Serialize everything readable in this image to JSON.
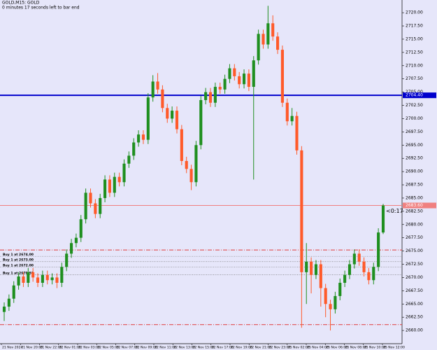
{
  "header": {
    "title": "GOLD,M15: GOLD",
    "countdown": "0 minutes 17 seconds left to bar end"
  },
  "chart_data": {
    "type": "candlestick",
    "open": [
      2663.5,
      2664.5,
      2666.0,
      2668.5,
      2670.2,
      2669.0,
      2671.0,
      2670.0,
      2669.0,
      2670.5,
      2669.5,
      2670.0,
      2669.0,
      2672.0,
      2674.5,
      2676.5,
      2677.5,
      2681.0,
      2686.0,
      2684.0,
      2682.0,
      2685.0,
      2688.5,
      2686.0,
      2689.0,
      2688.0,
      2691.5,
      2693.0,
      2695.5,
      2697.0,
      2696.0,
      2704.0,
      2707.0,
      2705.5,
      2702.0,
      2700.0,
      2701.5,
      2698.0,
      2692.0,
      2690.5,
      2688.0,
      2695.0,
      2703.5,
      2705.0,
      2703.0,
      2706.0,
      2705.5,
      2707.5,
      2709.5,
      2708.0,
      2706.5,
      2708.5,
      2706.0,
      2711.0,
      2716.0,
      2714.0,
      2718.0,
      2715.5,
      2713.0,
      2703.0,
      2699.5,
      2700.5,
      2694.0,
      2671.0,
      2673.0,
      2670.5,
      2672.5,
      2668.0,
      2665.0,
      2664.0,
      2666.5,
      2669.0,
      2670.5,
      2672.5,
      2674.5,
      2673.0,
      2671.0,
      2669.5,
      2672.0,
      2678.5
    ],
    "high": [
      2665.3,
      2666.8,
      2669.3,
      2671.0,
      2671.0,
      2671.8,
      2671.8,
      2670.8,
      2671.3,
      2671.3,
      2670.8,
      2670.8,
      2672.8,
      2675.3,
      2677.3,
      2678.3,
      2681.8,
      2686.8,
      2686.8,
      2684.8,
      2685.8,
      2689.3,
      2689.3,
      2689.8,
      2689.8,
      2692.3,
      2693.8,
      2696.3,
      2697.8,
      2697.8,
      2704.8,
      2708.2,
      2708.6,
      2706.3,
      2702.8,
      2702.3,
      2702.3,
      2698.8,
      2692.8,
      2691.3,
      2695.8,
      2704.3,
      2705.8,
      2705.8,
      2706.8,
      2706.8,
      2708.3,
      2710.3,
      2710.3,
      2708.8,
      2709.3,
      2709.3,
      2711.8,
      2716.8,
      2716.8,
      2721.3,
      2719.5,
      2716.3,
      2713.8,
      2703.8,
      2702.0,
      2701.3,
      2694.8,
      2676.5,
      2673.8,
      2673.3,
      2673.3,
      2668.8,
      2665.8,
      2667.3,
      2669.8,
      2671.3,
      2673.3,
      2675.3,
      2675.3,
      2673.8,
      2671.8,
      2672.8,
      2679.3,
      2683.9
    ],
    "low": [
      2661.8,
      2663.7,
      2665.2,
      2667.7,
      2668.2,
      2668.2,
      2669.2,
      2668.2,
      2668.2,
      2668.7,
      2668.7,
      2668.0,
      2668.2,
      2671.2,
      2673.7,
      2675.7,
      2676.7,
      2680.2,
      2683.2,
      2681.2,
      2681.2,
      2684.2,
      2685.2,
      2685.2,
      2687.2,
      2687.2,
      2690.7,
      2692.2,
      2694.7,
      2695.2,
      2695.2,
      2703.2,
      2704.7,
      2701.2,
      2699.2,
      2699.2,
      2697.2,
      2691.2,
      2689.7,
      2686.5,
      2687.2,
      2694.2,
      2702.7,
      2702.2,
      2702.2,
      2704.7,
      2704.7,
      2706.7,
      2707.2,
      2705.7,
      2705.7,
      2705.2,
      2688.5,
      2710.2,
      2713.2,
      2713.2,
      2714.7,
      2712.2,
      2702.2,
      2698.7,
      2698.7,
      2693.2,
      2660.5,
      2665.0,
      2667.0,
      2669.7,
      2664.5,
      2662.5,
      2660.0,
      2663.2,
      2665.7,
      2668.2,
      2669.7,
      2671.7,
      2672.2,
      2670.2,
      2668.7,
      2668.7,
      2671.2,
      2678.2
    ],
    "close": [
      2664.5,
      2666.0,
      2668.5,
      2670.2,
      2669.0,
      2671.0,
      2670.0,
      2669.0,
      2670.5,
      2669.5,
      2670.0,
      2669.0,
      2672.0,
      2674.5,
      2676.5,
      2677.5,
      2681.0,
      2686.0,
      2684.0,
      2682.0,
      2685.0,
      2688.5,
      2686.0,
      2689.0,
      2688.0,
      2691.5,
      2693.0,
      2695.5,
      2697.0,
      2696.0,
      2704.0,
      2707.0,
      2705.5,
      2702.0,
      2700.0,
      2701.5,
      2698.0,
      2692.0,
      2690.5,
      2688.0,
      2695.0,
      2703.5,
      2705.0,
      2703.0,
      2706.0,
      2705.5,
      2707.5,
      2709.5,
      2708.0,
      2706.5,
      2708.5,
      2706.0,
      2711.0,
      2716.0,
      2714.0,
      2718.0,
      2715.5,
      2713.0,
      2703.0,
      2699.5,
      2700.5,
      2694.0,
      2671.0,
      2673.0,
      2670.5,
      2672.5,
      2668.0,
      2665.0,
      2664.0,
      2666.5,
      2669.0,
      2670.5,
      2672.5,
      2674.5,
      2673.0,
      2671.0,
      2669.5,
      2672.0,
      2678.5,
      2683.6
    ],
    "up_color": "#1f8f1f",
    "down_color": "#ff5a2a",
    "ylim": [
      2657.5,
      2722
    ],
    "yticks": [
      {
        "value": 2660,
        "label": "2660.00"
      },
      {
        "value": 2662.5,
        "label": "2662.50"
      },
      {
        "value": 2665,
        "label": "2665.00"
      },
      {
        "value": 2667.5,
        "label": "2667.50"
      },
      {
        "value": 2670,
        "label": "2670.00"
      },
      {
        "value": 2672.5,
        "label": "2672.50"
      },
      {
        "value": 2675,
        "label": "2675.00"
      },
      {
        "value": 2677.5,
        "label": "2677.50"
      },
      {
        "value": 2680,
        "label": "2680.00"
      },
      {
        "value": 2682.5,
        "label": "2682.50"
      },
      {
        "value": 2685,
        "label": "2685.00"
      },
      {
        "value": 2687.5,
        "label": "2687.50"
      },
      {
        "value": 2690,
        "label": "2690.00"
      },
      {
        "value": 2692.5,
        "label": "2692.50"
      },
      {
        "value": 2695,
        "label": "2695.00"
      },
      {
        "value": 2697.5,
        "label": "2697.50"
      },
      {
        "value": 2700,
        "label": "2700.00"
      },
      {
        "value": 2702.5,
        "label": "2702.50"
      },
      {
        "value": 2705,
        "label": "2705.00"
      },
      {
        "value": 2707.5,
        "label": "2707.50"
      },
      {
        "value": 2710,
        "label": "2710.00"
      },
      {
        "value": 2712.5,
        "label": "2712.50"
      },
      {
        "value": 2715,
        "label": "2715.00"
      },
      {
        "value": 2717.5,
        "label": "2717.50"
      },
      {
        "value": 2720,
        "label": "2720.00"
      }
    ],
    "x_labels": [
      "21 Nov 2024",
      "21 Nov 20:00",
      "21 Nov 22:00",
      "22 Nov 01:00",
      "22 Nov 03:00",
      "22 Nov 05:00",
      "22 Nov 07:00",
      "22 Nov 09:00",
      "22 Nov 11:00",
      "22 Nov 13:00",
      "22 Nov 15:00",
      "22 Nov 17:00",
      "22 Nov 19:00",
      "22 Nov 21:00",
      "22 Nov 23:00",
      "25 Nov 02:00",
      "25 Nov 04:00",
      "25 Nov 06:00",
      "25 Nov 08:00",
      "25 Nov 10:00",
      "25 Nov 12:00"
    ],
    "levels": [
      {
        "price": 2704.4,
        "label": "2704.40",
        "color": "#0000cd",
        "style": "solid"
      },
      {
        "price": 2683.6,
        "label": "2683.60",
        "color": "#f08080",
        "style": "solid"
      },
      {
        "price": 2675.2,
        "color": "#e03c3c",
        "style": "dashdot"
      },
      {
        "price": 2661.1,
        "color": "#e03c3c",
        "style": "dashdot"
      }
    ],
    "orders": [
      {
        "price": 2674.0,
        "label": "Buy 1 at 2674.00"
      },
      {
        "price": 2673.0,
        "label": "Buy 1 at 2673.00"
      },
      {
        "price": 2672.0,
        "label": "Buy 1 at 2672.00"
      },
      {
        "price": 2670.5,
        "label": "Buy 1 at 2670.50"
      }
    ],
    "timer": "<0:17"
  }
}
